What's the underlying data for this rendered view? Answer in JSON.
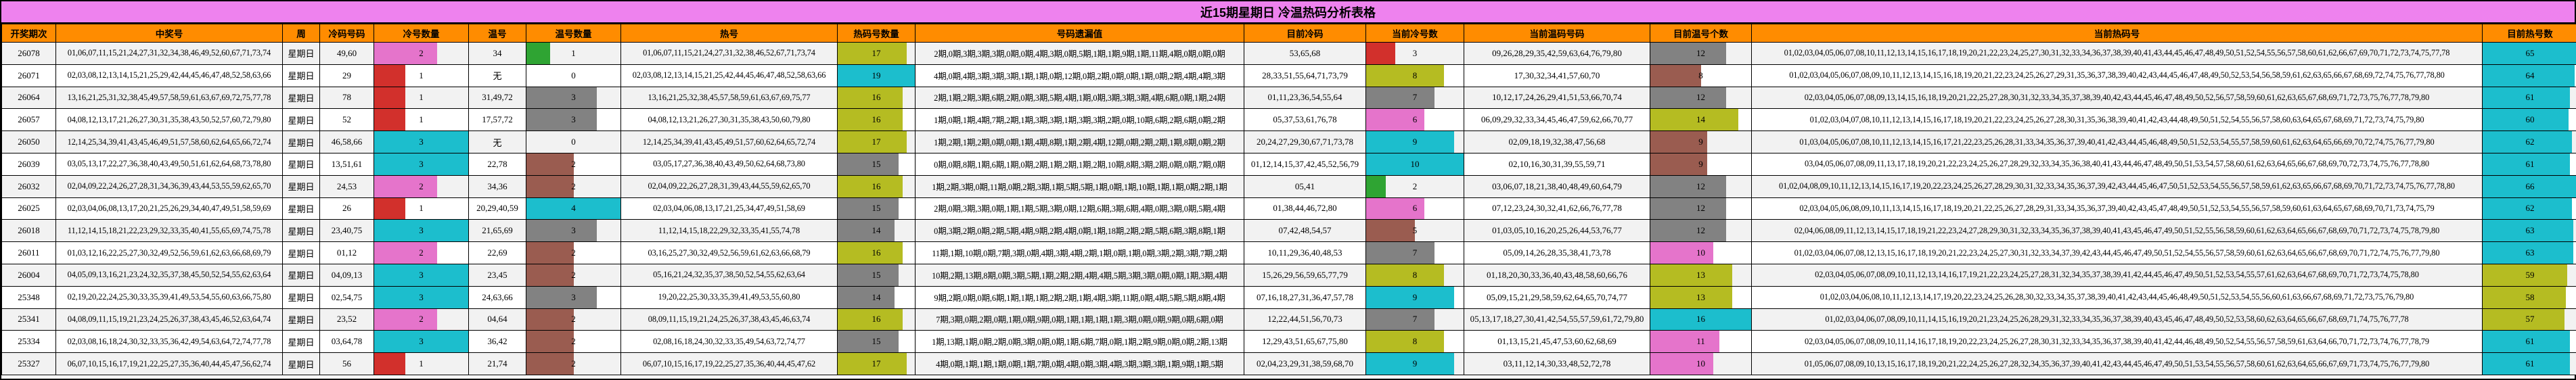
{
  "title": "近15期星期日 冷温热码分析表格",
  "columns": [
    {
      "key": "period",
      "label": "开奖期次"
    },
    {
      "key": "winning",
      "label": "中奖号"
    },
    {
      "key": "week",
      "label": "周"
    },
    {
      "key": "cold_nums",
      "label": "冷码号码"
    },
    {
      "key": "cold_count",
      "label": "冷号数量"
    },
    {
      "key": "warm_nums",
      "label": "温号"
    },
    {
      "key": "warm_count",
      "label": "温号数量"
    },
    {
      "key": "hot_nums",
      "label": "热号"
    },
    {
      "key": "hot_count",
      "label": "热码号数量"
    },
    {
      "key": "omission",
      "label": "号码遗漏值"
    },
    {
      "key": "cur_cold_nums",
      "label": "目前冷码"
    },
    {
      "key": "cur_cold_count",
      "label": "当前冷号数"
    },
    {
      "key": "cur_warm_nums",
      "label": "当前温码号码"
    },
    {
      "key": "cur_warm_count",
      "label": "目前温号个数"
    },
    {
      "key": "cur_hot_nums",
      "label": "当前热码号"
    },
    {
      "key": "cur_hot_count",
      "label": "目前热号数"
    }
  ],
  "colors": {
    "title_bg": "#ee82ee",
    "header_bg": "#ff8c00",
    "row_alt_bg": "#f2f2f2",
    "border": "#000000",
    "bar_red": "#d2302c",
    "bar_pink": "#e574cb",
    "bar_cyan": "#1cbecd",
    "bar_green": "#2fa433",
    "bar_gray": "#828282",
    "bar_brown": "#9a5c50",
    "bar_olive": "#b5bc22"
  },
  "bar_max": {
    "cold_count": 3,
    "warm_count": 4,
    "hot_count": 19,
    "cur_cold_count": 10,
    "cur_warm_count": 16,
    "cur_hot_count": 66
  },
  "rows": [
    {
      "period": "26078",
      "winning": "01,06,07,11,15,21,24,27,31,32,34,38,46,49,52,60,67,71,73,74",
      "week": "星期日",
      "cold_nums": "49,60",
      "cold_count": {
        "v": 2,
        "c": "bar_pink"
      },
      "warm_nums": "34",
      "warm_count": {
        "v": 1,
        "c": "bar_green"
      },
      "hot_nums": "01,06,07,11,15,21,24,27,31,32,38,46,52,67,71,73,74",
      "hot_count": {
        "v": 17,
        "c": "bar_olive"
      },
      "omission": "2期,0期,3期,3期,3期,0期,0期,4期,3期,0期,5期,1期,1期,9期,1期,11期,4期,0期,0期,0期",
      "cur_cold_nums": "53,65,68",
      "cur_cold_count": {
        "v": 3,
        "c": "bar_red"
      },
      "cur_warm_nums": "09,26,28,29,35,42,59,63,64,76,79,80",
      "cur_warm_count": {
        "v": 12,
        "c": "bar_gray"
      },
      "cur_hot_nums": "01,02,03,04,05,06,07,08,10,11,12,13,14,15,16,17,18,19,20,21,22,23,24,25,27,30,31,32,33,34,36,37,38,39,40,41,43,44,45,46,47,48,49,50,51,52,54,55,56,57,58,60,61,62,66,67,69,70,71,72,73,74,75,77,78",
      "cur_hot_count": {
        "v": 65,
        "c": "bar_cyan"
      }
    },
    {
      "period": "26071",
      "winning": "02,03,08,12,13,14,15,21,25,29,42,44,45,46,47,48,52,58,63,66",
      "week": "星期日",
      "cold_nums": "29",
      "cold_count": {
        "v": 1,
        "c": "bar_red"
      },
      "warm_nums": "无",
      "warm_count": {
        "v": 0,
        "c": ""
      },
      "hot_nums": "02,03,08,12,13,14,15,21,25,42,44,45,46,47,48,52,58,63,66",
      "hot_count": {
        "v": 19,
        "c": "bar_cyan"
      },
      "omission": "4期,0期,4期,3期,3期,3期,1期,1期,0期,12期,0期,2期,0期,0期,1期,0期,2期,4期,4期,3期",
      "cur_cold_nums": "28,33,51,55,64,71,73,79",
      "cur_cold_count": {
        "v": 8,
        "c": "bar_olive"
      },
      "cur_warm_nums": "17,30,32,34,41,57,60,70",
      "cur_warm_count": {
        "v": 8,
        "c": "bar_brown"
      },
      "cur_hot_nums": "01,02,03,04,05,06,07,08,09,10,11,12,13,14,15,16,18,19,20,21,22,23,24,25,26,27,29,31,35,36,37,38,39,40,42,43,44,45,46,47,48,49,50,52,53,54,56,58,59,61,62,63,65,66,67,68,69,72,74,75,76,77,78,80",
      "cur_hot_count": {
        "v": 64,
        "c": "bar_cyan"
      }
    },
    {
      "period": "26064",
      "winning": "13,16,21,25,31,32,38,45,49,57,58,59,61,63,67,69,72,75,77,78",
      "week": "星期日",
      "cold_nums": "78",
      "cold_count": {
        "v": 1,
        "c": "bar_red"
      },
      "warm_nums": "31,49,72",
      "warm_count": {
        "v": 3,
        "c": "bar_gray"
      },
      "hot_nums": "13,16,21,25,32,38,45,57,58,59,61,63,67,69,75,77",
      "hot_count": {
        "v": 16,
        "c": "bar_olive"
      },
      "omission": "2期,1期,2期,3期,6期,2期,0期,3期,5期,4期,1期,0期,3期,3期,3期,4期,6期,0期,1期,24期",
      "cur_cold_nums": "01,11,23,36,54,55,64",
      "cur_cold_count": {
        "v": 7,
        "c": "bar_gray"
      },
      "cur_warm_nums": "10,12,17,24,26,29,41,51,53,66,70,74",
      "cur_warm_count": {
        "v": 12,
        "c": "bar_gray"
      },
      "cur_hot_nums": "02,03,04,05,06,07,08,09,13,14,15,16,18,19,20,21,22,25,27,28,30,31,32,33,34,35,37,38,39,40,42,43,44,45,46,47,48,49,50,52,56,57,58,59,60,61,62,63,65,67,68,69,71,72,73,75,76,77,78,79,80",
      "cur_hot_count": {
        "v": 61,
        "c": "bar_cyan"
      }
    },
    {
      "period": "26057",
      "winning": "04,08,12,13,17,21,26,27,30,31,35,38,43,50,52,57,60,72,79,80",
      "week": "星期日",
      "cold_nums": "52",
      "cold_count": {
        "v": 1,
        "c": "bar_red"
      },
      "warm_nums": "17,57,72",
      "warm_count": {
        "v": 3,
        "c": "bar_gray"
      },
      "hot_nums": "04,08,12,13,21,26,27,30,31,35,38,43,50,60,79,80",
      "hot_count": {
        "v": 16,
        "c": "bar_olive"
      },
      "omission": "1期,0期,1期,4期,7期,2期,1期,3期,3期,1期,3期,3期,2期,0期,10期,6期,2期,6期,0期,2期",
      "cur_cold_nums": "05,37,53,61,76,78",
      "cur_cold_count": {
        "v": 6,
        "c": "bar_pink"
      },
      "cur_warm_nums": "06,09,29,32,33,34,45,46,47,59,62,66,70,77",
      "cur_warm_count": {
        "v": 14,
        "c": "bar_olive"
      },
      "cur_hot_nums": "01,02,03,04,07,08,10,11,12,13,14,15,16,17,18,19,20,21,22,23,24,25,26,27,28,30,31,35,36,38,39,40,41,42,43,44,48,49,50,51,52,54,55,56,57,58,60,63,64,65,67,68,69,71,72,73,74,75,79,80",
      "cur_hot_count": {
        "v": 60,
        "c": "bar_cyan"
      }
    },
    {
      "period": "26050",
      "winning": "12,14,25,34,39,41,43,45,46,49,51,57,58,60,62,64,65,66,72,74",
      "week": "星期日",
      "cold_nums": "46,58,66",
      "cold_count": {
        "v": 3,
        "c": "bar_cyan"
      },
      "warm_nums": "无",
      "warm_count": {
        "v": 0,
        "c": ""
      },
      "hot_nums": "12,14,25,34,39,41,43,45,49,51,57,60,62,64,65,72,74",
      "hot_count": {
        "v": 17,
        "c": "bar_olive"
      },
      "omission": "1期,2期,1期,2期,0期,0期,1期,4期,8期,1期,2期,4期,12期,0期,2期,2期,1期,8期,0期,2期",
      "cur_cold_nums": "20,24,27,29,30,67,71,73,78",
      "cur_cold_count": {
        "v": 9,
        "c": "bar_cyan"
      },
      "cur_warm_nums": "02,09,18,19,32,38,47,56,68",
      "cur_warm_count": {
        "v": 9,
        "c": "bar_brown"
      },
      "cur_hot_nums": "01,03,04,05,06,07,08,10,11,12,13,14,15,16,17,21,22,23,25,26,28,31,33,34,35,36,37,39,40,41,42,43,44,45,46,48,49,50,51,52,53,54,55,57,58,59,60,61,62,63,64,65,66,69,70,72,74,75,76,77,79,80",
      "cur_hot_count": {
        "v": 62,
        "c": "bar_cyan"
      }
    },
    {
      "period": "26039",
      "winning": "03,05,13,17,22,27,36,38,40,43,49,50,51,61,62,64,68,73,78,80",
      "week": "星期日",
      "cold_nums": "13,51,61",
      "cold_count": {
        "v": 3,
        "c": "bar_cyan"
      },
      "warm_nums": "22,78",
      "warm_count": {
        "v": 2,
        "c": "bar_brown"
      },
      "hot_nums": "03,05,17,27,36,38,40,43,49,50,62,64,68,73,80",
      "hot_count": {
        "v": 15,
        "c": "bar_gray"
      },
      "omission": "0期,0期,8期,1期,6期,1期,0期,2期,1期,2期,1期,2期,10期,8期,3期,2期,0期,0期,7期,0期",
      "cur_cold_nums": "01,12,14,15,37,42,45,52,56,79",
      "cur_cold_count": {
        "v": 10,
        "c": "bar_cyan"
      },
      "cur_warm_nums": "02,10,16,30,31,39,55,59,71",
      "cur_warm_count": {
        "v": 9,
        "c": "bar_brown"
      },
      "cur_hot_nums": "03,04,05,06,07,08,09,11,13,17,18,19,20,21,22,23,24,25,26,27,28,29,32,33,34,35,36,38,40,41,43,44,46,47,48,49,50,51,53,54,57,58,60,61,62,63,64,65,66,67,68,69,70,72,73,74,75,76,77,78,80",
      "cur_hot_count": {
        "v": 61,
        "c": "bar_cyan"
      }
    },
    {
      "period": "26032",
      "winning": "02,04,09,22,24,26,27,28,31,34,36,39,43,44,53,55,59,62,65,70",
      "week": "星期日",
      "cold_nums": "24,53",
      "cold_count": {
        "v": 2,
        "c": "bar_pink"
      },
      "warm_nums": "34,36",
      "warm_count": {
        "v": 2,
        "c": "bar_brown"
      },
      "hot_nums": "02,04,09,22,26,27,28,31,39,43,44,55,59,62,65,70",
      "hot_count": {
        "v": 16,
        "c": "bar_olive"
      },
      "omission": "1期,2期,3期,0期,11期,0期,2期,3期,1期,5期,5期,1期,0期,1期,10期,1期,1期,0期,2期,1期",
      "cur_cold_nums": "05,41",
      "cur_cold_count": {
        "v": 2,
        "c": "bar_green"
      },
      "cur_warm_nums": "03,06,07,18,21,38,40,48,49,60,64,79",
      "cur_warm_count": {
        "v": 12,
        "c": "bar_gray"
      },
      "cur_hot_nums": "01,02,04,08,09,10,11,12,13,14,15,16,17,19,20,22,23,24,25,26,27,28,29,30,31,32,33,34,35,36,37,39,42,43,44,45,46,47,50,51,52,53,54,55,56,57,58,59,61,62,63,65,66,67,68,69,70,71,72,73,74,75,76,77,78,80",
      "cur_hot_count": {
        "v": 66,
        "c": "bar_cyan"
      }
    },
    {
      "period": "26025",
      "winning": "02,03,04,06,08,13,17,20,21,25,26,29,34,40,47,49,51,58,59,69",
      "week": "星期日",
      "cold_nums": "26",
      "cold_count": {
        "v": 1,
        "c": "bar_red"
      },
      "warm_nums": "20,29,40,59",
      "warm_count": {
        "v": 4,
        "c": "bar_cyan"
      },
      "hot_nums": "02,03,04,06,08,13,17,21,25,34,47,49,51,58,69",
      "hot_count": {
        "v": 15,
        "c": "bar_gray"
      },
      "omission": "2期,0期,3期,3期,0期,1期,1期,5期,3期,0期,12期,6期,3期,6期,4期,0期,3期,0期,5期,4期",
      "cur_cold_nums": "01,38,44,46,72,80",
      "cur_cold_count": {
        "v": 6,
        "c": "bar_pink"
      },
      "cur_warm_nums": "07,12,23,24,30,32,41,62,66,76,77,78",
      "cur_warm_count": {
        "v": 12,
        "c": "bar_gray"
      },
      "cur_hot_nums": "02,03,04,05,06,08,09,10,11,13,14,15,16,17,18,19,20,21,22,25,26,27,28,29,31,33,34,35,36,37,39,40,42,43,45,47,48,49,50,51,52,53,54,55,56,57,58,59,60,61,63,64,65,67,68,69,70,71,73,74,75,79",
      "cur_hot_count": {
        "v": 62,
        "c": "bar_cyan"
      }
    },
    {
      "period": "26018",
      "winning": "11,12,14,15,18,21,22,23,29,32,33,35,40,41,55,65,69,74,75,78",
      "week": "星期日",
      "cold_nums": "23,40,75",
      "cold_count": {
        "v": 3,
        "c": "bar_cyan"
      },
      "warm_nums": "21,65,69",
      "warm_count": {
        "v": 3,
        "c": "bar_gray"
      },
      "hot_nums": "11,12,14,15,18,22,29,32,33,35,41,55,74,78",
      "hot_count": {
        "v": 14,
        "c": "bar_gray"
      },
      "omission": "0期,3期,2期,0期,2期,5期,4期,9期,2期,4期,0期,1期,18期,2期,2期,5期,6期,3期,8期,1期",
      "cur_cold_nums": "07,42,48,54,57",
      "cur_cold_count": {
        "v": 5,
        "c": "bar_brown"
      },
      "cur_warm_nums": "01,03,05,10,16,20,25,26,44,53,76,77",
      "cur_warm_count": {
        "v": 12,
        "c": "bar_gray"
      },
      "cur_hot_nums": "02,04,06,08,09,11,12,13,14,15,17,18,19,21,22,23,24,27,28,29,30,31,32,33,34,35,36,37,38,39,40,41,43,45,46,47,49,50,51,52,55,56,58,59,60,61,62,63,64,65,66,67,68,69,70,71,72,73,74,75,78,79,80",
      "cur_hot_count": {
        "v": 63,
        "c": "bar_cyan"
      }
    },
    {
      "period": "26011",
      "winning": "01,03,12,16,22,25,27,30,32,49,52,56,59,61,62,63,66,68,69,79",
      "week": "星期日",
      "cold_nums": "01,12",
      "cold_count": {
        "v": 2,
        "c": "bar_pink"
      },
      "warm_nums": "22,69",
      "warm_count": {
        "v": 2,
        "c": "bar_brown"
      },
      "hot_nums": "03,16,25,27,30,32,49,52,56,59,61,62,63,66,68,79",
      "hot_count": {
        "v": 16,
        "c": "bar_olive"
      },
      "omission": "11期,1期,10期,0期,7期,3期,0期,4期,3期,4期,2期,1期,0期,1期,0期,3期,2期,3期,7期,2期",
      "cur_cold_nums": "10,11,29,36,40,48,53",
      "cur_cold_count": {
        "v": 7,
        "c": "bar_gray"
      },
      "cur_warm_nums": "05,09,14,26,28,35,38,41,73,78",
      "cur_warm_count": {
        "v": 10,
        "c": "bar_pink"
      },
      "cur_hot_nums": "01,02,03,04,06,07,08,12,13,15,16,17,18,19,20,21,22,23,24,25,27,30,31,32,33,34,37,39,42,43,44,45,46,47,49,50,51,52,54,55,56,57,58,59,60,61,62,63,64,65,66,67,68,69,70,71,72,74,75,76,77,79,80",
      "cur_hot_count": {
        "v": 63,
        "c": "bar_cyan"
      }
    },
    {
      "period": "26004",
      "winning": "04,05,09,13,16,21,23,24,32,35,37,38,45,50,52,54,55,62,63,64",
      "week": "星期日",
      "cold_nums": "04,09,13",
      "cold_count": {
        "v": 3,
        "c": "bar_cyan"
      },
      "warm_nums": "23,45",
      "warm_count": {
        "v": 2,
        "c": "bar_brown"
      },
      "hot_nums": "05,16,21,24,32,35,37,38,50,52,54,55,62,63,64",
      "hot_count": {
        "v": 15,
        "c": "bar_gray"
      },
      "omission": "10期,2期,13期,8期,0期,3期,5期,1期,2期,2期,4期,4期,5期,3期,3期,0期,0期,1期,3期,4期",
      "cur_cold_nums": "15,26,29,56,59,65,77,79",
      "cur_cold_count": {
        "v": 8,
        "c": "bar_olive"
      },
      "cur_warm_nums": "01,18,20,30,33,36,40,43,48,58,60,66,76",
      "cur_warm_count": {
        "v": 13,
        "c": "bar_olive"
      },
      "cur_hot_nums": "02,03,04,05,06,07,08,09,10,11,12,13,14,16,17,19,21,22,23,24,25,27,28,31,32,34,35,37,38,39,41,42,44,45,46,47,49,50,51,52,53,54,55,57,61,62,63,64,67,68,69,70,71,72,73,74,75,78,80",
      "cur_hot_count": {
        "v": 59,
        "c": "bar_olive"
      }
    },
    {
      "period": "25348",
      "winning": "02,19,20,22,24,25,30,33,35,39,41,49,53,54,55,60,63,66,75,80",
      "week": "星期日",
      "cold_nums": "02,54,75",
      "cold_count": {
        "v": 3,
        "c": "bar_cyan"
      },
      "warm_nums": "24,63,66",
      "warm_count": {
        "v": 3,
        "c": "bar_gray"
      },
      "hot_nums": "19,20,22,25,30,33,35,39,41,49,53,55,60,80",
      "hot_count": {
        "v": 14,
        "c": "bar_gray"
      },
      "omission": "9期,2期,0期,0期,6期,1期,1期,1期,2期,2期,1期,4期,3期,11期,0期,4期,5期,5期,8期,4期",
      "cur_cold_nums": "07,16,18,27,31,36,47,57,78",
      "cur_cold_count": {
        "v": 9,
        "c": "bar_cyan"
      },
      "cur_warm_nums": "05,09,15,21,29,58,59,62,64,65,70,74,77",
      "cur_warm_count": {
        "v": 13,
        "c": "bar_olive"
      },
      "cur_hot_nums": "01,02,03,04,06,08,10,11,12,13,14,17,19,20,22,23,24,25,26,28,30,32,33,34,35,37,38,39,40,41,42,43,44,45,46,48,49,50,51,52,53,54,55,56,60,61,63,66,67,68,69,71,72,73,75,76,79,80",
      "cur_hot_count": {
        "v": 58,
        "c": "bar_olive"
      }
    },
    {
      "period": "25341",
      "winning": "04,08,09,11,15,19,21,23,24,25,26,37,38,43,45,46,52,63,64,74",
      "week": "星期日",
      "cold_nums": "23,52",
      "cold_count": {
        "v": 2,
        "c": "bar_pink"
      },
      "warm_nums": "04,64",
      "warm_count": {
        "v": 2,
        "c": "bar_brown"
      },
      "hot_nums": "08,09,11,15,19,21,24,25,26,37,38,43,45,46,63,74",
      "hot_count": {
        "v": 16,
        "c": "bar_olive"
      },
      "omission": "7期,3期,0期,2期,0期,1期,0期,9期,0期,1期,1期,1期,1期,3期,0期,0期,9期,0期,6期,0期",
      "cur_cold_nums": "12,22,44,51,56,70,73",
      "cur_cold_count": {
        "v": 7,
        "c": "bar_gray"
      },
      "cur_warm_nums": "05,13,17,18,27,30,41,42,54,55,57,59,61,72,79,80",
      "cur_warm_count": {
        "v": 16,
        "c": "bar_cyan"
      },
      "cur_hot_nums": "01,02,03,04,06,07,08,09,10,11,14,15,16,19,20,21,23,24,25,26,28,29,31,32,33,34,35,36,37,38,39,40,43,45,46,47,48,49,50,52,53,58,60,62,63,64,65,66,67,68,69,71,74,75,76,77,78",
      "cur_hot_count": {
        "v": 57,
        "c": "bar_olive"
      }
    },
    {
      "period": "25334",
      "winning": "02,03,08,16,18,24,30,32,33,35,36,42,49,54,63,64,72,74,77,78",
      "week": "星期日",
      "cold_nums": "03,64,78",
      "cold_count": {
        "v": 3,
        "c": "bar_cyan"
      },
      "warm_nums": "36,42",
      "warm_count": {
        "v": 2,
        "c": "bar_brown"
      },
      "hot_nums": "02,08,16,18,24,30,32,33,35,49,54,63,72,74,77",
      "hot_count": {
        "v": 15,
        "c": "bar_gray"
      },
      "omission": "1期,13期,1期,0期,2期,0期,3期,0期,0期,1期,6期,7期,0期,1期,2期,9期,0期,0期,2期,13期",
      "cur_cold_nums": "12,29,43,51,65,67,75,80",
      "cur_cold_count": {
        "v": 8,
        "c": "bar_olive"
      },
      "cur_warm_nums": "01,13,15,21,45,47,53,60,62,68,69",
      "cur_warm_count": {
        "v": 11,
        "c": "bar_pink"
      },
      "cur_hot_nums": "02,03,04,05,06,07,08,09,10,11,14,16,17,18,19,20,22,23,24,25,26,27,28,30,31,32,33,34,35,36,37,38,39,40,41,42,44,46,48,49,50,52,54,55,56,57,58,59,61,63,64,66,70,71,72,73,74,76,77,78,79",
      "cur_hot_count": {
        "v": 61,
        "c": "bar_cyan"
      }
    },
    {
      "period": "25327",
      "winning": "06,07,10,15,16,17,19,21,22,25,27,35,36,40,44,45,47,56,62,74",
      "week": "星期日",
      "cold_nums": "56",
      "cold_count": {
        "v": 1,
        "c": "bar_red"
      },
      "warm_nums": "21,74",
      "warm_count": {
        "v": 2,
        "c": "bar_brown"
      },
      "hot_nums": "06,07,10,15,16,17,19,22,25,27,35,36,40,44,45,47,62",
      "hot_count": {
        "v": 17,
        "c": "bar_olive"
      },
      "omission": "4期,0期,1期,1期,1期,0期,1期,7期,0期,4期,0期,3期,4期,3期,3期,3期,1期,9期,1期,5期",
      "cur_cold_nums": "02,04,23,29,31,38,59,68,70",
      "cur_cold_count": {
        "v": 9,
        "c": "bar_cyan"
      },
      "cur_warm_nums": "03,11,12,14,30,33,48,52,72,78",
      "cur_warm_count": {
        "v": 10,
        "c": "bar_pink"
      },
      "cur_hot_nums": "01,05,06,07,08,09,10,13,15,16,17,18,19,20,21,22,24,25,26,27,28,32,34,35,36,37,39,40,41,42,43,44,45,46,47,49,50,51,53,54,55,56,57,58,60,61,62,63,64,65,66,67,69,71,73,74,75,76,77,79,80",
      "cur_hot_count": {
        "v": 61,
        "c": "bar_cyan"
      }
    }
  ]
}
